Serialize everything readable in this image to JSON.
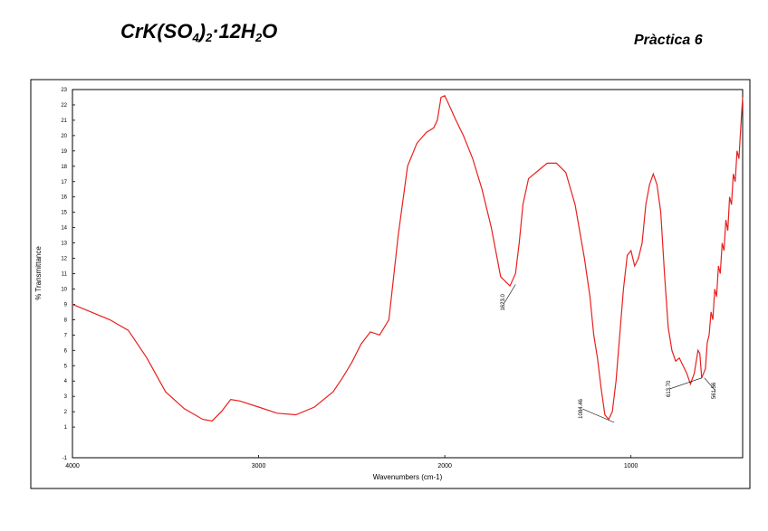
{
  "header": {
    "formula_parts": [
      "CrK(SO",
      "4",
      ")",
      "2",
      "·12H",
      "2",
      "O"
    ],
    "practice": "Pràctica 6"
  },
  "chart_data": {
    "type": "line",
    "title": "",
    "xlabel": "Wavenumbers (cm-1)",
    "ylabel": "% Transmittance",
    "xlim": [
      4000,
      400
    ],
    "ylim": [
      -1,
      23
    ],
    "x_ticks": [
      4000,
      3000,
      2000,
      1000
    ],
    "x_tick_labels": [
      "4000",
      "3000",
      "2000",
      "1000"
    ],
    "y_ticks": [
      -1,
      1,
      2,
      3,
      4,
      5,
      6,
      7,
      8,
      9,
      10,
      11,
      12,
      13,
      14,
      15,
      16,
      17,
      18,
      19,
      20,
      21,
      22,
      23
    ],
    "y_tick_labels": [
      "-1",
      "1",
      "2",
      "3",
      "4",
      "5",
      "6",
      "7",
      "8",
      "9",
      "10",
      "11",
      "12",
      "13",
      "14",
      "15",
      "16",
      "17",
      "18",
      "19",
      "20",
      "21",
      "22",
      "23"
    ],
    "grid": false,
    "line_color": "#e8201e",
    "series": [
      {
        "x": [
          4000,
          3900,
          3800,
          3700,
          3600,
          3500,
          3400,
          3300,
          3250,
          3200,
          3150,
          3100,
          3000,
          2900,
          2800,
          2700,
          2600,
          2550,
          2500,
          2450,
          2400,
          2350,
          2300,
          2250,
          2200,
          2150,
          2100,
          2060,
          2040,
          2020,
          2000,
          1970,
          1940,
          1900,
          1850,
          1800,
          1750,
          1700,
          1650,
          1620,
          1600,
          1580,
          1550,
          1500,
          1450,
          1400,
          1350,
          1300,
          1250,
          1220,
          1200,
          1180,
          1160,
          1140,
          1120,
          1100,
          1080,
          1060,
          1040,
          1020,
          1000,
          980,
          960,
          940,
          920,
          900,
          880,
          860,
          840,
          820,
          800,
          780,
          760,
          740,
          720,
          700,
          680,
          660,
          640,
          630,
          620,
          600,
          590,
          580,
          570,
          560,
          550,
          540,
          530,
          520,
          510,
          500,
          490,
          480,
          470,
          460,
          450,
          440,
          430,
          420,
          410,
          400
        ],
        "y": [
          9.0,
          8.5,
          8.0,
          7.3,
          5.5,
          3.3,
          2.2,
          1.5,
          1.4,
          2.0,
          2.8,
          2.7,
          2.3,
          1.9,
          1.8,
          2.3,
          3.3,
          4.2,
          5.2,
          6.4,
          7.2,
          7.0,
          8.0,
          13.5,
          18.0,
          19.5,
          20.2,
          20.5,
          21.0,
          22.5,
          22.6,
          21.8,
          21.0,
          20.0,
          18.5,
          16.5,
          14.0,
          10.8,
          10.2,
          11.0,
          13.0,
          15.5,
          17.2,
          17.7,
          18.2,
          18.2,
          17.6,
          15.5,
          12.0,
          9.5,
          7.0,
          5.5,
          3.5,
          1.8,
          1.5,
          2.0,
          4.0,
          7.0,
          10.0,
          12.2,
          12.5,
          11.5,
          12.0,
          13.0,
          15.5,
          16.8,
          17.5,
          16.8,
          15.0,
          11.0,
          7.5,
          6.0,
          5.3,
          5.5,
          5.0,
          4.5,
          3.8,
          4.5,
          6.0,
          5.8,
          4.2,
          4.8,
          6.5,
          7.0,
          8.5,
          8.0,
          10.0,
          9.5,
          11.5,
          11.0,
          13.0,
          12.5,
          14.5,
          13.8,
          16.0,
          15.5,
          17.5,
          17.0,
          19.0,
          18.5,
          20.5,
          22.5
        ]
      }
    ],
    "annotations": [
      {
        "text": "1623.0",
        "x": 1620,
        "y": 10.3
      },
      {
        "text": "1084.46",
        "x": 1090,
        "y": 1.3
      },
      {
        "text": "613.70",
        "x": 620,
        "y": 4.2
      },
      {
        "text": "561.56",
        "x": 605,
        "y": 4.2
      }
    ]
  }
}
